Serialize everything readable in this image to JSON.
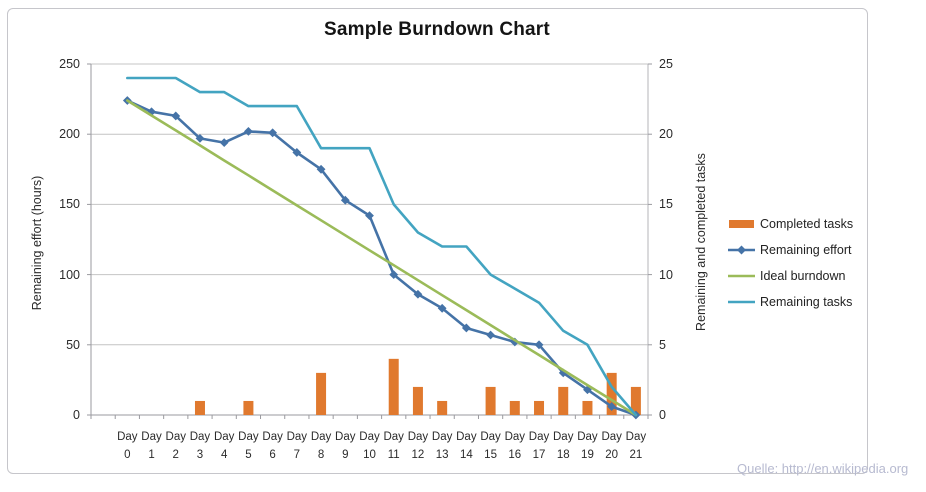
{
  "chart_data": {
    "type": "combo-bar-line",
    "title": "Sample Burndown Chart",
    "source": "Quelle: http://en.wikipedia.org",
    "grid": "horizontal",
    "legend_position": "right",
    "categories": [
      "Day 0",
      "Day 1",
      "Day 2",
      "Day 3",
      "Day 4",
      "Day 5",
      "Day 6",
      "Day 7",
      "Day 8",
      "Day 9",
      "Day 10",
      "Day 11",
      "Day 12",
      "Day 13",
      "Day 14",
      "Day 15",
      "Day 16",
      "Day 17",
      "Day 18",
      "Day 19",
      "Day 20",
      "Day 21"
    ],
    "left_axis": {
      "label": "Remaining effort (hours)",
      "min": 0,
      "max": 250,
      "step": 50,
      "ticks": [
        "0",
        "50",
        "100",
        "150",
        "200",
        "250"
      ]
    },
    "right_axis": {
      "label": "Remaining and completed tasks",
      "min": 0,
      "max": 25,
      "step": 5,
      "ticks": [
        "0",
        "5",
        "10",
        "15",
        "20",
        "25"
      ]
    },
    "series": [
      {
        "name": "Completed tasks",
        "type": "bar",
        "axis": "right",
        "color": "#E0792E",
        "values": [
          null,
          null,
          null,
          1,
          null,
          1,
          null,
          null,
          3,
          null,
          null,
          4,
          2,
          1,
          null,
          2,
          1,
          1,
          2,
          1,
          3,
          2
        ]
      },
      {
        "name": "Remaining effort",
        "type": "line",
        "marker": "diamond",
        "axis": "left",
        "color": "#4573A7",
        "values": [
          224,
          216,
          213,
          197,
          194,
          202,
          201,
          187,
          175,
          153,
          142,
          100,
          86,
          76,
          62,
          57,
          52,
          50,
          30,
          18,
          6,
          0
        ]
      },
      {
        "name": "Ideal burndown",
        "type": "line",
        "marker": "none",
        "axis": "left",
        "color": "#9BBB59",
        "values": [
          224,
          213.3,
          202.7,
          192,
          181.3,
          170.7,
          160,
          149.3,
          138.7,
          128,
          117.3,
          106.7,
          96,
          85.3,
          74.7,
          64,
          53.3,
          42.7,
          32,
          21.3,
          10.7,
          0
        ]
      },
      {
        "name": "Remaining tasks",
        "type": "line",
        "marker": "none",
        "axis": "right",
        "color": "#43A4C1",
        "values": [
          24,
          24,
          24,
          23,
          23,
          22,
          22,
          22,
          19,
          19,
          19,
          15,
          13,
          12,
          12,
          10,
          9,
          8,
          6,
          5,
          2,
          0
        ]
      }
    ]
  }
}
